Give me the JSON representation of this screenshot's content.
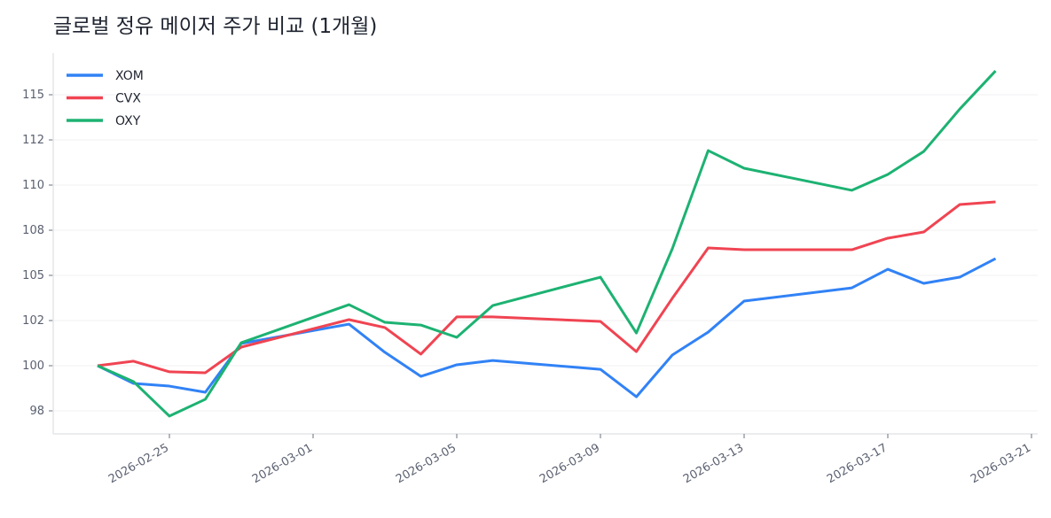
{
  "chart_data": {
    "type": "line",
    "title": "글로벌 정유 메이저 주가 비교 (1개월)",
    "xlabel": "",
    "ylabel": "",
    "x": [
      "2026-02-23",
      "2026-02-24",
      "2026-02-25",
      "2026-02-26",
      "2026-02-27",
      "2026-03-02",
      "2026-03-03",
      "2026-03-04",
      "2026-03-05",
      "2026-03-06",
      "2026-03-09",
      "2026-03-10",
      "2026-03-11",
      "2026-03-12",
      "2026-03-13",
      "2026-03-16",
      "2026-03-17",
      "2026-03-18",
      "2026-03-19",
      "2026-03-20"
    ],
    "series": [
      {
        "name": "XOM",
        "color": "#3182f6",
        "values": [
          100,
          99.02,
          98.87,
          98.53,
          101.23,
          102.3,
          100.74,
          99.41,
          100.05,
          100.29,
          99.8,
          98.28,
          100.59,
          101.86,
          103.58,
          104.31,
          105.34,
          104.56,
          104.9,
          105.93
        ]
      },
      {
        "name": "CVX",
        "color": "#f04452",
        "values": [
          100,
          100.25,
          99.66,
          99.61,
          101.03,
          102.55,
          102.11,
          100.64,
          102.7,
          102.7,
          102.45,
          100.78,
          103.73,
          106.52,
          106.42,
          106.42,
          107.06,
          107.4,
          108.92,
          109.07
        ]
      },
      {
        "name": "OXY",
        "color": "#1db272",
        "values": [
          100,
          99.12,
          97.21,
          98.14,
          101.27,
          103.38,
          102.4,
          102.25,
          101.57,
          103.33,
          104.9,
          101.81,
          106.47,
          111.91,
          110.93,
          109.71,
          110.59,
          111.86,
          114.2,
          116.32
        ]
      }
    ],
    "y_ticks": [
      {
        "value": 97.5,
        "label": "98"
      },
      {
        "value": 100,
        "label": "100"
      },
      {
        "value": 102.5,
        "label": "102"
      },
      {
        "value": 105,
        "label": "105"
      },
      {
        "value": 107.5,
        "label": "108"
      },
      {
        "value": 110,
        "label": "110"
      },
      {
        "value": 112.5,
        "label": "112"
      },
      {
        "value": 115,
        "label": "115"
      }
    ],
    "x_ticks": [
      "2026-02-25",
      "2026-03-01",
      "2026-03-05",
      "2026-03-09",
      "2026-03-13",
      "2026-03-17",
      "2026-03-21"
    ],
    "ylim": [
      96.5,
      118
    ],
    "grid": "horizontal",
    "legend": "top-left"
  }
}
